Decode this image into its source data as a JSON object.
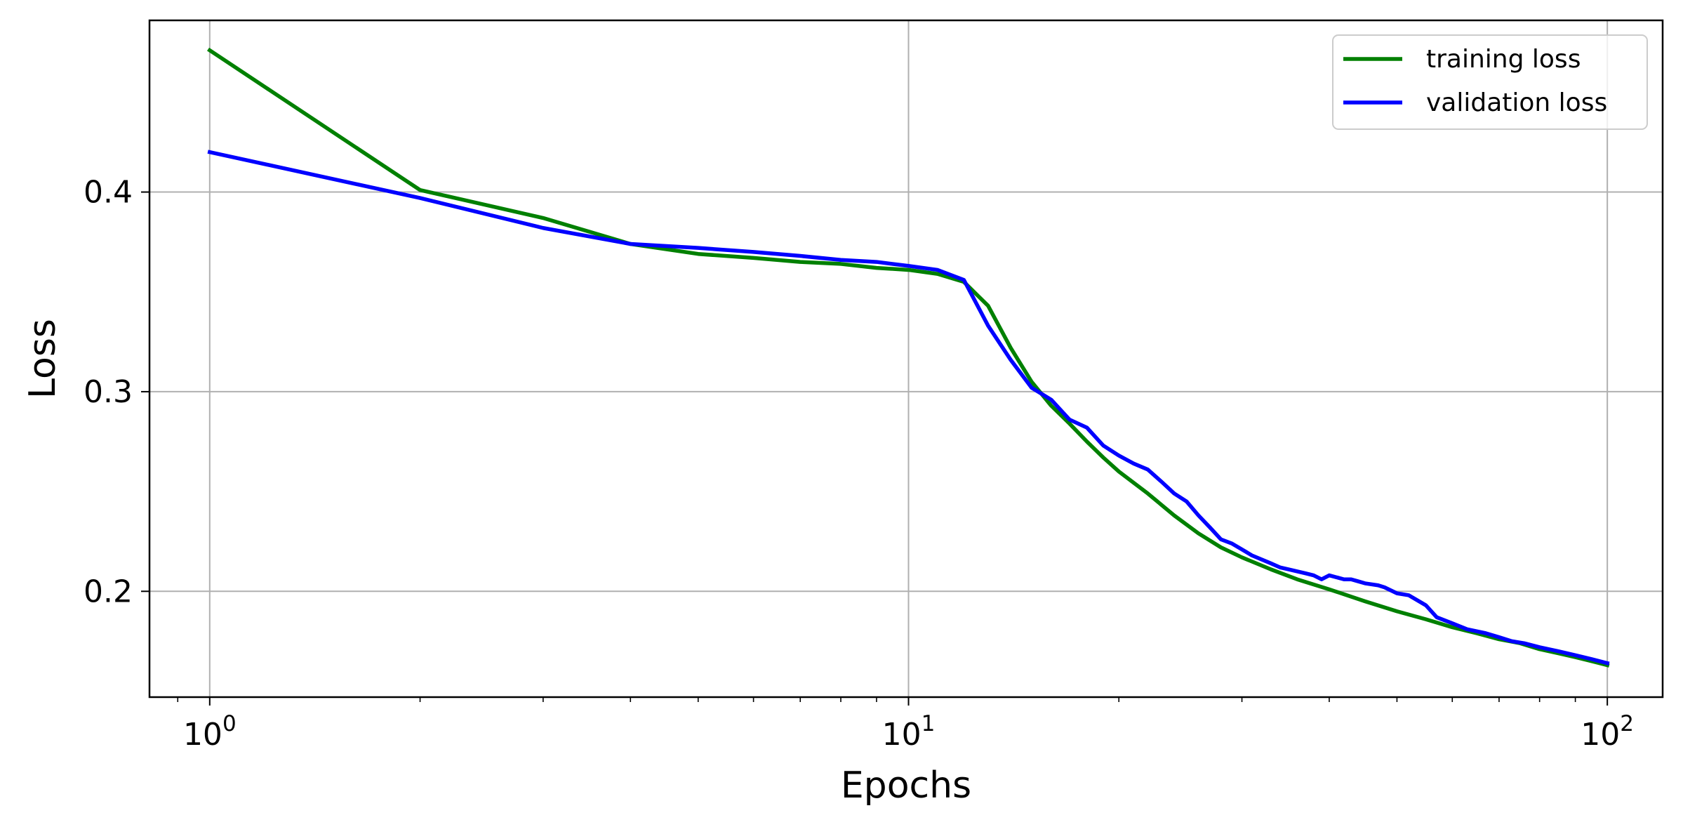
{
  "chart_data": {
    "type": "line",
    "title": "",
    "xlabel": "Epochs",
    "ylabel": "Loss",
    "x_scale": "log",
    "xlim": [
      0.82,
      120
    ],
    "ylim": [
      0.147,
      0.486
    ],
    "grid": true,
    "legend_position": "top-right",
    "x_ticks": [
      {
        "value": 1,
        "base": "10",
        "exp": "0"
      },
      {
        "value": 10,
        "base": "10",
        "exp": "1"
      },
      {
        "value": 100,
        "base": "10",
        "exp": "2"
      }
    ],
    "y_ticks": [
      {
        "value": 0.2,
        "label": "0.2"
      },
      {
        "value": 0.3,
        "label": "0.3"
      },
      {
        "value": 0.4,
        "label": "0.4"
      }
    ],
    "series": [
      {
        "name": "training loss",
        "color": "#008000",
        "points": [
          [
            1,
            0.471
          ],
          [
            2,
            0.401
          ],
          [
            3,
            0.387
          ],
          [
            4,
            0.374
          ],
          [
            5,
            0.369
          ],
          [
            6,
            0.367
          ],
          [
            7,
            0.365
          ],
          [
            8,
            0.364
          ],
          [
            9,
            0.362
          ],
          [
            10,
            0.361
          ],
          [
            11,
            0.359
          ],
          [
            12,
            0.355
          ],
          [
            13,
            0.343
          ],
          [
            14,
            0.322
          ],
          [
            15,
            0.305
          ],
          [
            16,
            0.293
          ],
          [
            17,
            0.284
          ],
          [
            18,
            0.275
          ],
          [
            19,
            0.267
          ],
          [
            20,
            0.26
          ],
          [
            22,
            0.249
          ],
          [
            24,
            0.238
          ],
          [
            26,
            0.229
          ],
          [
            28,
            0.222
          ],
          [
            30,
            0.217
          ],
          [
            33,
            0.211
          ],
          [
            36,
            0.206
          ],
          [
            40,
            0.201
          ],
          [
            45,
            0.195
          ],
          [
            50,
            0.19
          ],
          [
            55,
            0.186
          ],
          [
            60,
            0.182
          ],
          [
            65,
            0.179
          ],
          [
            70,
            0.176
          ],
          [
            75,
            0.174
          ],
          [
            80,
            0.171
          ],
          [
            85,
            0.169
          ],
          [
            90,
            0.167
          ],
          [
            95,
            0.165
          ],
          [
            100,
            0.163
          ]
        ]
      },
      {
        "name": "validation loss",
        "color": "#0000ff",
        "points": [
          [
            1,
            0.42
          ],
          [
            2,
            0.397
          ],
          [
            3,
            0.382
          ],
          [
            4,
            0.374
          ],
          [
            5,
            0.372
          ],
          [
            6,
            0.37
          ],
          [
            7,
            0.368
          ],
          [
            8,
            0.366
          ],
          [
            9,
            0.365
          ],
          [
            10,
            0.363
          ],
          [
            11,
            0.361
          ],
          [
            12,
            0.356
          ],
          [
            13,
            0.333
          ],
          [
            14,
            0.316
          ],
          [
            15,
            0.302
          ],
          [
            16,
            0.296
          ],
          [
            17,
            0.286
          ],
          [
            18,
            0.282
          ],
          [
            19,
            0.273
          ],
          [
            20,
            0.268
          ],
          [
            21,
            0.264
          ],
          [
            22,
            0.261
          ],
          [
            23,
            0.255
          ],
          [
            24,
            0.249
          ],
          [
            25,
            0.245
          ],
          [
            26,
            0.238
          ],
          [
            27,
            0.232
          ],
          [
            28,
            0.226
          ],
          [
            29,
            0.224
          ],
          [
            30,
            0.221
          ],
          [
            31,
            0.218
          ],
          [
            33,
            0.214
          ],
          [
            34,
            0.212
          ],
          [
            35,
            0.211
          ],
          [
            37,
            0.209
          ],
          [
            38,
            0.208
          ],
          [
            39,
            0.206
          ],
          [
            40,
            0.208
          ],
          [
            42,
            0.206
          ],
          [
            43,
            0.206
          ],
          [
            44,
            0.205
          ],
          [
            45,
            0.204
          ],
          [
            47,
            0.203
          ],
          [
            48,
            0.202
          ],
          [
            50,
            0.199
          ],
          [
            52,
            0.198
          ],
          [
            55,
            0.193
          ],
          [
            57,
            0.187
          ],
          [
            60,
            0.184
          ],
          [
            63,
            0.181
          ],
          [
            67,
            0.179
          ],
          [
            70,
            0.177
          ],
          [
            73,
            0.175
          ],
          [
            76,
            0.174
          ],
          [
            80,
            0.172
          ],
          [
            85,
            0.17
          ],
          [
            90,
            0.168
          ],
          [
            95,
            0.166
          ],
          [
            100,
            0.164
          ]
        ]
      }
    ]
  }
}
